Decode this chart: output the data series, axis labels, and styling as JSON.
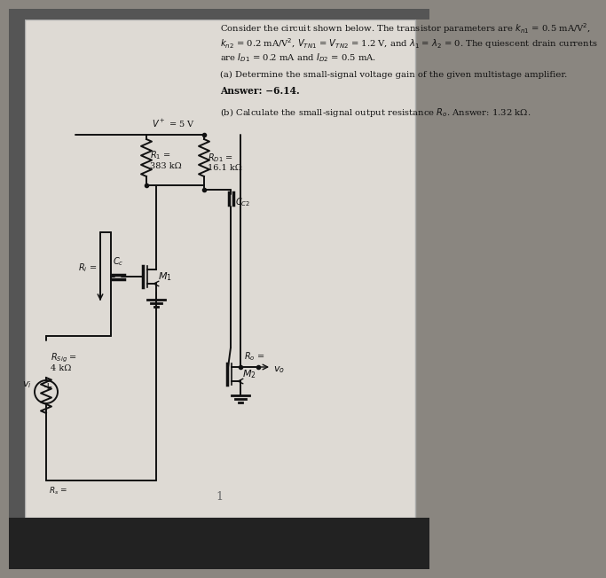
{
  "fig_bg": "#8a8680",
  "paper_bg": "#dedad4",
  "text_color": "#111111",
  "wire_color": "#111111",
  "line1": "Consider the circuit shown below. The transistor parameters are $k_{n1}$ = 0.5 mA/V$^2$,",
  "line2": "$k_{n2}$ = 0.2 mA/V$^2$, $V_{TN1}$ = $V_{TN2}$ = 1.2 V, and $\\lambda_1$ = $\\lambda_2$ = 0. The quiescent drain currents",
  "line3": "are $I_{D1}$ = 0.2 mA and $I_{D2}$ = 0.5 mA.",
  "line4": "(a) Determine the small-signal voltage gain of the given multistage amplifier.",
  "line5": "Answer: −6.14.",
  "line6": "(b) Calculate the small-signal output resistance $R_o$. Answer: 1.32 kΩ.",
  "rsig_label1": "$R_{Sig}$ =",
  "rsig_label2": "4 kΩ",
  "r1_label1": "$R_1$ =",
  "r1_label2": "383 kΩ",
  "rd1_label1": "$R_{D1}$ =",
  "rd1_label2": "16.1 kΩ",
  "vdd_label": "$V^+$ = 5 V",
  "cc_label": "$C_c$",
  "cc2_label": "$C_{C2}$",
  "m1_label": "$M_1$",
  "m2_label": "$M_2$",
  "ro_label": "$R_o$ =",
  "vo_label": "$v_o$",
  "vi_label": "$v_i$",
  "ri_label": "$R_i$ =",
  "rs_label": "$R_s$ ="
}
